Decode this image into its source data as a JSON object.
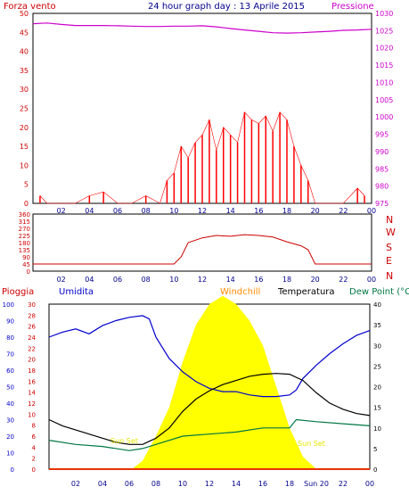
{
  "header": {
    "left_title": "Forza vento",
    "center_title": "24 hour graph day : 13 Aprile 2015",
    "right_title": "Pressione"
  },
  "panel2": {
    "direction_labels": [
      "N",
      "W",
      "S",
      "E",
      "N"
    ]
  },
  "panel3": {
    "legend": [
      "Pioggia",
      "Umidita",
      "Windchill",
      "Temperatura",
      "Dew Point (°C"
    ],
    "annotations": [
      "Sun Set",
      "Sun Set"
    ]
  },
  "chart_data": [
    {
      "type": "line",
      "title": "24 hour graph day : 13 Aprile 2015",
      "series": [
        {
          "name": "Forza vento",
          "color": "#ff0000",
          "x_hours": [
            0.5,
            1,
            2,
            3,
            4,
            5,
            6,
            7,
            8,
            9,
            9.5,
            10,
            10.5,
            11,
            11.5,
            12,
            12.5,
            13,
            13.5,
            14,
            14.5,
            15,
            15.5,
            16,
            16.5,
            17,
            17.5,
            18,
            18.5,
            19,
            19.5,
            20,
            21,
            22,
            23,
            23.5
          ],
          "values": [
            2,
            0,
            0,
            0,
            2,
            3,
            0,
            0,
            2,
            0,
            6,
            8,
            15,
            12,
            16,
            18,
            22,
            14,
            20,
            18,
            16,
            24,
            22,
            21,
            23,
            19,
            24,
            22,
            15,
            10,
            6,
            0,
            0,
            0,
            4,
            2
          ]
        },
        {
          "name": "Pressione",
          "color": "#cc00cc",
          "x_hours": [
            0,
            1,
            2,
            3,
            4,
            5,
            6,
            7,
            8,
            9,
            10,
            11,
            12,
            13,
            14,
            15,
            16,
            17,
            18,
            19,
            20,
            21,
            22,
            23,
            24
          ],
          "values": [
            1027,
            1027.2,
            1026.8,
            1026.5,
            1026.5,
            1026.5,
            1026.4,
            1026.3,
            1026.2,
            1026.2,
            1026.3,
            1026.3,
            1026.4,
            1026.1,
            1025.6,
            1025.2,
            1024.8,
            1024.4,
            1024.3,
            1024.4,
            1024.6,
            1024.8,
            1025.1,
            1025.2,
            1025.4
          ]
        }
      ],
      "y_left": {
        "range": [
          0,
          50
        ],
        "ticks": [
          0,
          5,
          10,
          15,
          20,
          25,
          30,
          35,
          40,
          45,
          50
        ]
      },
      "y_right": {
        "range": [
          975,
          1030
        ],
        "ticks": [
          975,
          980,
          985,
          990,
          995,
          1000,
          1005,
          1010,
          1015,
          1020,
          1025,
          1030
        ]
      },
      "x_ticks": [
        "02",
        "04",
        "06",
        "08",
        "10",
        "12",
        "14",
        "16",
        "18",
        "20",
        "22",
        "00"
      ]
    },
    {
      "type": "line",
      "series": [
        {
          "color": "#cc0000",
          "x_hours": [
            0,
            2,
            4,
            6,
            8,
            9.5,
            10,
            10.5,
            11,
            12,
            13,
            14,
            15,
            16,
            17,
            18,
            19,
            19.5,
            20,
            22,
            24
          ],
          "values": [
            45,
            45,
            45,
            45,
            45,
            45,
            45,
            90,
            180,
            210,
            225,
            220,
            230,
            225,
            215,
            185,
            160,
            135,
            45,
            45,
            45
          ]
        }
      ],
      "y_left": {
        "range": [
          0,
          360
        ],
        "ticks": [
          0,
          45,
          90,
          135,
          180,
          225,
          270,
          315,
          360
        ]
      },
      "x_ticks": [
        "02",
        "04",
        "06",
        "08",
        "10",
        "12",
        "14",
        "16",
        "18",
        "20",
        "22",
        "00"
      ]
    },
    {
      "type": "line",
      "series": [
        {
          "name": "Umidita",
          "color": "#0000cc",
          "x_hours": [
            0,
            1,
            2,
            3,
            4,
            5,
            6,
            7,
            7.5,
            8,
            9,
            10,
            11,
            12,
            13,
            14,
            15,
            16,
            17,
            18,
            18.5,
            19,
            20,
            21,
            22,
            23,
            24
          ],
          "values": [
            80,
            83,
            85,
            82,
            87,
            90,
            92,
            93,
            91,
            80,
            67,
            59,
            53,
            49,
            47,
            47,
            45,
            44,
            44,
            45,
            48,
            55,
            63,
            70,
            76,
            81,
            84
          ]
        },
        {
          "name": "Temperatura",
          "color": "#000000",
          "x_hours": [
            0,
            1,
            2,
            3,
            4,
            5,
            6,
            7,
            8,
            9,
            10,
            11,
            12,
            13,
            14,
            15,
            16,
            17,
            18,
            19,
            20,
            21,
            22,
            23,
            24
          ],
          "values": [
            12,
            10.5,
            9.5,
            8.5,
            7.5,
            6.5,
            6,
            6,
            7.5,
            10,
            14,
            17,
            19,
            20.5,
            21.5,
            22.5,
            23,
            23.2,
            23,
            21.5,
            18.5,
            16,
            14.5,
            13.5,
            13
          ]
        },
        {
          "name": "Windchill",
          "color": "#ff6600",
          "x_hours": [
            0,
            24
          ],
          "values": [
            0,
            0
          ]
        },
        {
          "name": "Dew Point (°C",
          "color": "#007744",
          "x_hours": [
            0,
            2,
            4,
            6,
            7,
            8,
            10,
            12,
            14,
            16,
            18,
            18.5,
            20,
            22,
            24
          ],
          "values": [
            7,
            6,
            5.5,
            4.5,
            5,
            6,
            8,
            8.5,
            9,
            10,
            10,
            12,
            11.5,
            11,
            10.5
          ]
        },
        {
          "name": "Pioggia",
          "color": "#cc0000",
          "x_hours": [
            0,
            24
          ],
          "values": [
            0,
            0
          ]
        },
        {
          "color": "#ffff00",
          "x_hours": [
            6.2,
            7,
            8,
            9,
            10,
            11,
            12,
            13,
            14,
            15,
            16,
            17,
            18,
            19,
            20
          ],
          "values": [
            0,
            2,
            8,
            15,
            26,
            35,
            40,
            42,
            40,
            36,
            30,
            20,
            10,
            3,
            0
          ]
        }
      ],
      "y_left_outer": {
        "range": [
          0,
          100
        ],
        "ticks": [
          0,
          10,
          20,
          30,
          40,
          50,
          60,
          70,
          80,
          90,
          100
        ]
      },
      "y_left_inner": {
        "range": [
          0,
          30
        ],
        "ticks": [
          0,
          2,
          4,
          6,
          8,
          10,
          12,
          14,
          16,
          18,
          20,
          22,
          24,
          26,
          28,
          30
        ]
      },
      "y_right": {
        "range": [
          0,
          40
        ],
        "ticks": [
          0,
          5,
          10,
          15,
          20,
          25,
          30,
          35,
          40
        ]
      },
      "x_ticks": [
        "02",
        "04",
        "06",
        "08",
        "10",
        "12",
        "14",
        "16",
        "18",
        "Sun 20",
        "22",
        "00"
      ]
    }
  ]
}
